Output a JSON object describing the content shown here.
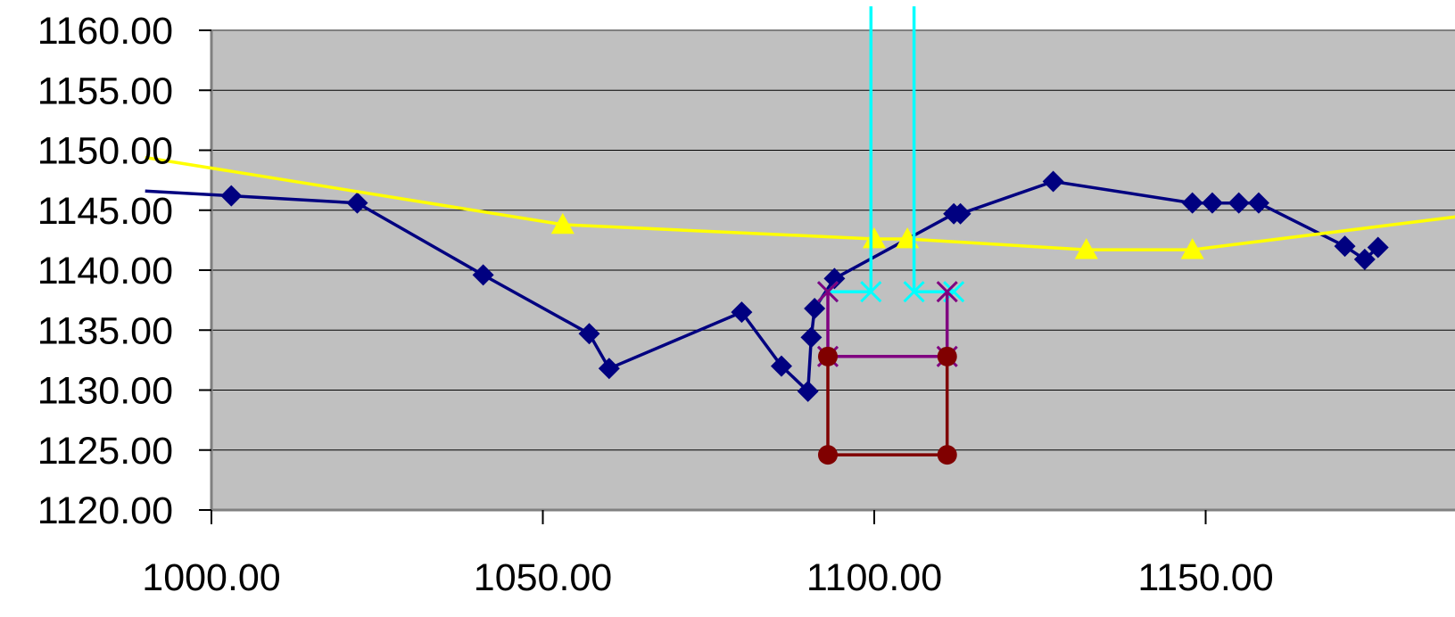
{
  "chart_data": {
    "type": "scatter",
    "title": "",
    "xlabel": "",
    "ylabel": "",
    "xlim": [
      1000,
      1178
    ],
    "ylim": [
      1120,
      1160
    ],
    "grid": true,
    "x_ticks": [
      1000,
      1050,
      1100,
      1150
    ],
    "x_tick_labels": [
      "1000.00",
      "1050.00",
      "1100.00",
      "1150.00"
    ],
    "y_ticks": [
      1120,
      1125,
      1130,
      1135,
      1140,
      1145,
      1150,
      1155,
      1160
    ],
    "y_tick_labels": [
      "1120.00",
      "1125.00",
      "1130.00",
      "1135.00",
      "1140.00",
      "1145.00",
      "1150.00",
      "1155.00",
      "1160.00"
    ],
    "colors": {
      "plot_background": "#c0c0c0",
      "gridline": "#000000",
      "series_navy": "#000080",
      "series_yellow": "#ffff00",
      "series_cyan": "#00ffff",
      "series_purple": "#800080",
      "series_darkred": "#800000"
    },
    "series": [
      {
        "marker": "diamond",
        "color": "#000080",
        "points": [
          [
            990,
            1146.6
          ],
          [
            1003,
            1146.2
          ],
          [
            1022,
            1145.6
          ],
          [
            1041,
            1139.6
          ],
          [
            1057,
            1134.7
          ],
          [
            1060,
            1131.8
          ],
          [
            1080,
            1136.5
          ],
          [
            1086,
            1132.0
          ],
          [
            1090,
            1129.9
          ],
          [
            1090.5,
            1134.4
          ],
          [
            1091,
            1136.8
          ],
          [
            1094,
            1139.3
          ],
          [
            1112,
            1144.7
          ],
          [
            1113,
            1144.7
          ],
          [
            1127,
            1147.4
          ],
          [
            1148,
            1145.6
          ],
          [
            1151,
            1145.6
          ],
          [
            1155,
            1145.6
          ],
          [
            1158,
            1145.6
          ],
          [
            1171,
            1142.0
          ],
          [
            1174,
            1140.9
          ],
          [
            1176,
            1141.9
          ]
        ]
      },
      {
        "marker": "triangle",
        "color": "#ffff00",
        "points": [
          [
            990,
            1149.4
          ],
          [
            1053,
            1143.8
          ],
          [
            1100,
            1142.6
          ],
          [
            1105,
            1142.6
          ],
          [
            1132,
            1141.7
          ],
          [
            1148,
            1141.7
          ],
          [
            1190,
            1144.6
          ]
        ]
      },
      {
        "marker": "x",
        "color": "#00ffff",
        "points": [
          [
            1099.5,
            1162
          ],
          [
            1099.5,
            1138.2
          ],
          [
            1093,
            1138.2
          ],
          null,
          [
            1106,
            1162
          ],
          [
            1106,
            1138.2
          ],
          [
            1112,
            1138.2
          ]
        ]
      },
      {
        "marker": "x",
        "color": "#800080",
        "points": [
          [
            1093,
            1138.2
          ],
          [
            1093,
            1132.8
          ],
          [
            1111,
            1132.8
          ],
          [
            1111,
            1138.2
          ]
        ]
      },
      {
        "marker": "circle",
        "color": "#800000",
        "points": [
          [
            1093,
            1132.8
          ],
          [
            1093,
            1124.6
          ],
          [
            1111,
            1124.6
          ],
          [
            1111,
            1132.8
          ]
        ]
      }
    ]
  }
}
